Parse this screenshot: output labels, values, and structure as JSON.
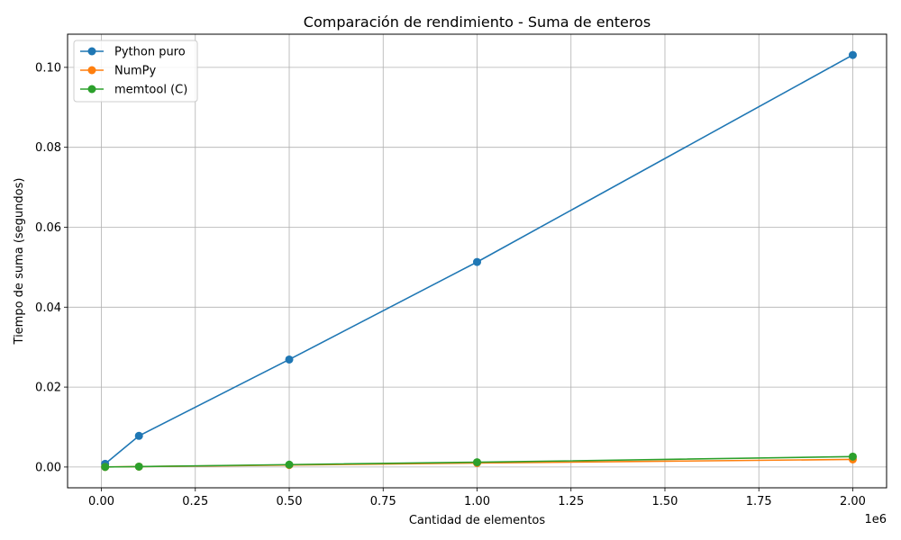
{
  "chart_data": {
    "type": "line",
    "title": "Comparación de rendimiento - Suma de enteros",
    "xlabel": "Cantidad de elementos",
    "ylabel": "Tiempo de suma (segundos)",
    "x_offset_label": "1e6",
    "x": [
      10000,
      100000,
      500000,
      1000000,
      2000000
    ],
    "xlim": [
      -90000,
      2090000
    ],
    "ylim": [
      -0.0052,
      0.1083
    ],
    "xticks": [
      0,
      250000,
      500000,
      750000,
      1000000,
      1250000,
      1500000,
      1750000,
      2000000
    ],
    "xtick_labels": [
      "0.00",
      "0.25",
      "0.50",
      "0.75",
      "1.00",
      "1.25",
      "1.50",
      "1.75",
      "2.00"
    ],
    "yticks": [
      0,
      0.02,
      0.04,
      0.06,
      0.08,
      0.1
    ],
    "ytick_labels": [
      "0.00",
      "0.02",
      "0.04",
      "0.06",
      "0.08",
      "0.10"
    ],
    "grid": true,
    "legend_position": "top-left",
    "series": [
      {
        "name": "Python puro",
        "color": "#1f77b4",
        "values": [
          0.0008,
          0.0078,
          0.0269,
          0.0513,
          0.1031
        ]
      },
      {
        "name": "NumPy",
        "color": "#ff7f0e",
        "values": [
          2e-05,
          0.0001,
          0.0005,
          0.001,
          0.0019
        ]
      },
      {
        "name": "memtool (C)",
        "color": "#2ca02c",
        "values": [
          1e-05,
          0.0001,
          0.0006,
          0.0012,
          0.0026
        ]
      }
    ]
  }
}
